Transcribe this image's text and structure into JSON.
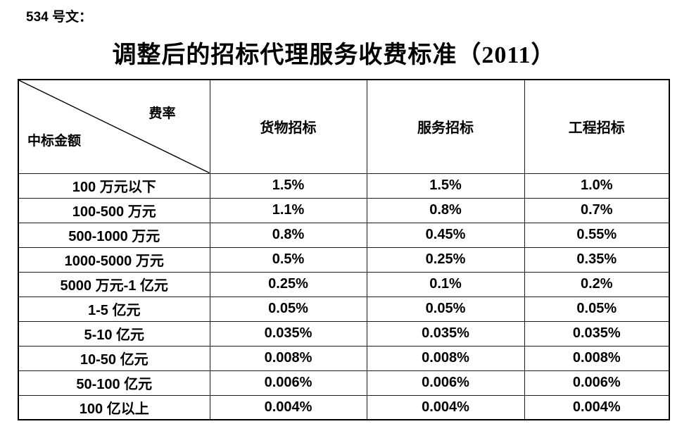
{
  "doc_label": "534 号文：",
  "title": "调整后的招标代理服务收费标准（2011）",
  "table": {
    "corner": {
      "top_right": "费率",
      "bottom_left": "中标金额"
    },
    "columns": [
      "货物招标",
      "服务招标",
      "工程招标"
    ],
    "rows": [
      {
        "amount": "100 万元以下",
        "values": [
          "1.5%",
          "1.5%",
          "1.0%"
        ]
      },
      {
        "amount": "100-500 万元",
        "values": [
          "1.1%",
          "0.8%",
          "0.7%"
        ]
      },
      {
        "amount": "500-1000 万元",
        "values": [
          "0.8%",
          "0.45%",
          "0.55%"
        ]
      },
      {
        "amount": "1000-5000 万元",
        "values": [
          "0.5%",
          "0.25%",
          "0.35%"
        ]
      },
      {
        "amount": "5000 万元-1 亿元",
        "values": [
          "0.25%",
          "0.1%",
          "0.2%"
        ]
      },
      {
        "amount": "1-5 亿元",
        "values": [
          "0.05%",
          "0.05%",
          "0.05%"
        ]
      },
      {
        "amount": "5-10 亿元",
        "values": [
          "0.035%",
          "0.035%",
          "0.035%"
        ]
      },
      {
        "amount": "10-50 亿元",
        "values": [
          "0.008%",
          "0.008%",
          "0.008%"
        ]
      },
      {
        "amount": "50-100 亿元",
        "values": [
          "0.006%",
          "0.006%",
          "0.006%"
        ]
      },
      {
        "amount": "100 亿以上",
        "values": [
          "0.004%",
          "0.004%",
          "0.004%"
        ]
      }
    ]
  },
  "colors": {
    "text": "#000000",
    "border": "#1a1a1a",
    "background": "#ffffff"
  }
}
